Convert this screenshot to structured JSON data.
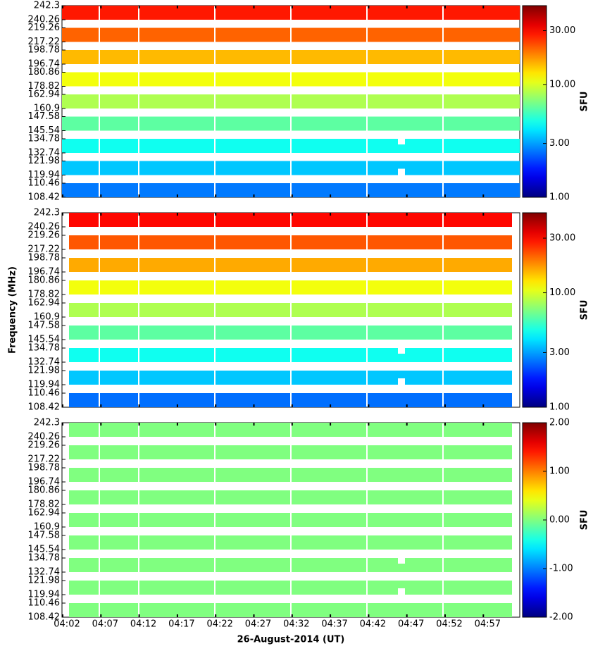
{
  "chart_data": [
    {
      "type": "heatmap",
      "yticks": [
        242.3,
        240.26,
        219.26,
        217.22,
        198.78,
        196.74,
        180.86,
        178.82,
        162.94,
        160.9,
        147.58,
        145.54,
        134.78,
        132.74,
        121.98,
        119.94,
        110.46,
        108.42
      ],
      "values": [
        28,
        21,
        15,
        11,
        8.5,
        6.2,
        4.6,
        3.5,
        2.6
      ],
      "zscale": "log",
      "zlim": [
        1,
        50
      ],
      "zticks": [
        {
          "value": 1,
          "label": "1.00"
        },
        {
          "value": 3,
          "label": "3.00"
        },
        {
          "value": 10,
          "label": "10.00"
        },
        {
          "value": 30,
          "label": "30.00"
        }
      ],
      "zlabel": "SFU"
    },
    {
      "type": "heatmap",
      "ylabel": "Frequency (MHz)",
      "yticks": [
        242.3,
        240.26,
        219.26,
        217.22,
        198.78,
        196.74,
        180.86,
        178.82,
        162.94,
        160.9,
        147.58,
        145.54,
        134.78,
        132.74,
        121.98,
        119.94,
        110.46,
        108.42
      ],
      "values": [
        30,
        22,
        16,
        11,
        8.5,
        6.2,
        4.6,
        3.5,
        2.5
      ],
      "zscale": "log",
      "zlim": [
        1,
        50
      ],
      "zticks": [
        {
          "value": 1,
          "label": "1.00"
        },
        {
          "value": 3,
          "label": "3.00"
        },
        {
          "value": 10,
          "label": "10.00"
        },
        {
          "value": 30,
          "label": "30.00"
        }
      ],
      "zlabel": "SFU"
    },
    {
      "type": "heatmap",
      "xlabel": "26-August-2014 (UT)",
      "xticks": [
        "04:02",
        "04:07",
        "04:12",
        "04:17",
        "04:22",
        "04:27",
        "04:32",
        "04:37",
        "04:42",
        "04:47",
        "04:52",
        "04:57"
      ],
      "yticks": [
        242.3,
        240.26,
        219.26,
        217.22,
        198.78,
        196.74,
        180.86,
        178.82,
        162.94,
        160.9,
        147.58,
        145.54,
        134.78,
        132.74,
        121.98,
        119.94,
        110.46,
        108.42
      ],
      "values": [
        0,
        0,
        0,
        0,
        0,
        0,
        0,
        0,
        0
      ],
      "zscale": "linear",
      "zlim": [
        -2,
        2
      ],
      "zticks": [
        {
          "value": -2,
          "label": "-2.00"
        },
        {
          "value": -1,
          "label": "-1.00"
        },
        {
          "value": 0,
          "label": "0.00"
        },
        {
          "value": 1,
          "label": "1.00"
        },
        {
          "value": 2,
          "label": "2.00"
        }
      ],
      "zlabel": "SFU"
    }
  ]
}
